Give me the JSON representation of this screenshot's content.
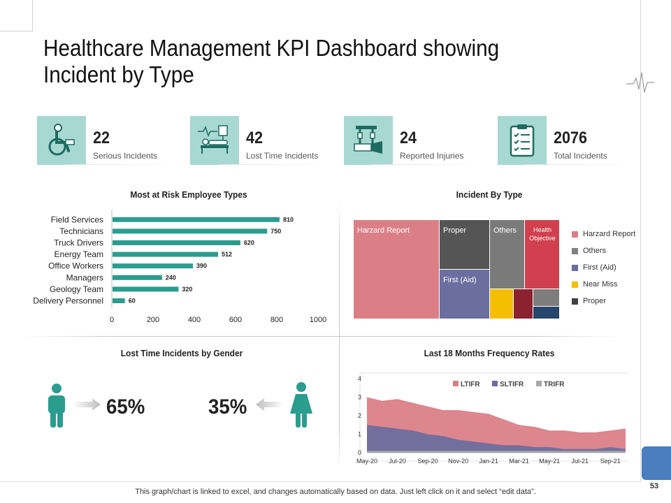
{
  "title": "Healthcare Management KPI Dashboard showing Incident by Type",
  "page_number": "53",
  "footer": "This graph/chart is linked to excel, and changes automatically based on data. Just left click on it and select “edit data”.",
  "colors": {
    "teal": "#2a9d8f",
    "icon_bg": "#a8d8d2",
    "accent_blue": "#4a7ebf"
  },
  "kpis": [
    {
      "value": "22",
      "label": "Serious Incidents",
      "icon": "wheelchair-icon"
    },
    {
      "value": "42",
      "label": "Lost Time Incidents",
      "icon": "hospital-bed-icon"
    },
    {
      "value": "24",
      "label": "Reported Injuries",
      "icon": "traction-icon"
    },
    {
      "value": "2076",
      "label": "Total Incidents",
      "icon": "checklist-icon"
    }
  ],
  "gender": {
    "title": "Lost Time Incidents by Gender",
    "male_pct": "65%",
    "female_pct": "35%"
  },
  "chart_data": [
    {
      "type": "bar",
      "orientation": "horizontal",
      "title": "Most at Risk Employee Types",
      "categories": [
        "Field Services",
        "Technicians",
        "Truck Drivers",
        "Energy Team",
        "Office Workers",
        "Managers",
        "Geology Team",
        "Delivery Personnel"
      ],
      "values": [
        810,
        750,
        620,
        512,
        390,
        240,
        320,
        60
      ],
      "xlim": [
        0,
        1000
      ],
      "xticks": [
        "0",
        "200",
        "400",
        "600",
        "800",
        "1000"
      ],
      "color": "#2a9d8f"
    },
    {
      "type": "treemap",
      "title": "Incident By Type",
      "rects": [
        {
          "label": "Harzard Report",
          "color": "#db7f87"
        },
        {
          "label": "Proper",
          "color": "#555555"
        },
        {
          "label": "First (Aid)",
          "color": "#6b6e9e"
        },
        {
          "label": "Others",
          "color": "#7a7a7a"
        },
        {
          "label": "Health Objective",
          "color": "#d0404e"
        },
        {
          "label": "",
          "color": "#f5be00"
        },
        {
          "label": "",
          "color": "#8a2230"
        },
        {
          "label": "",
          "color": "#7d7d7d"
        },
        {
          "label": "",
          "color": "#27466b"
        }
      ],
      "legend": [
        {
          "label": "Harzard Report",
          "color": "#db7f87"
        },
        {
          "label": "Others",
          "color": "#808080"
        },
        {
          "label": "First (Aid)",
          "color": "#6b6e9e"
        },
        {
          "label": "Near Miss",
          "color": "#f5be00"
        },
        {
          "label": "Proper",
          "color": "#404040"
        }
      ]
    },
    {
      "type": "area",
      "title": "Last 18 Months Frequency Rates",
      "x": [
        "May-20",
        "Jun-20",
        "Jul-20",
        "Aug-20",
        "Sep-20",
        "Oct-20",
        "Nov-20",
        "Dec-20",
        "Jan-21",
        "Feb-21",
        "Mar-21",
        "Apr-21",
        "May-21",
        "Jun-21",
        "Jul-21",
        "Aug-21",
        "Sep-21",
        "Oct-21"
      ],
      "xtick_labels": [
        "May-20",
        "Jul-20",
        "Sep-20",
        "Nov-20",
        "Jan-21",
        "Mar-21",
        "May-21",
        "Jul-21",
        "Sep-21"
      ],
      "ylim": [
        0,
        4
      ],
      "yticks": [
        "0",
        "1",
        "2",
        "3",
        "4"
      ],
      "series": [
        {
          "name": "LTIFR",
          "color": "#db7f87",
          "values": [
            3.0,
            2.8,
            2.9,
            2.7,
            2.5,
            2.3,
            2.3,
            2.2,
            2.1,
            1.8,
            1.5,
            1.4,
            1.2,
            1.2,
            1.1,
            1.1,
            1.2,
            1.3
          ]
        },
        {
          "name": "SLTIFR",
          "color": "#6b6e9e",
          "values": [
            1.5,
            1.4,
            1.3,
            1.2,
            1.0,
            0.9,
            0.7,
            0.6,
            0.5,
            0.4,
            0.4,
            0.3,
            0.3,
            0.2,
            0.2,
            0.2,
            0.3,
            0.2
          ]
        },
        {
          "name": "TRIFR",
          "color": "#a8a8a8",
          "values": [
            0.1,
            0.1,
            0.1,
            0.1,
            0.1,
            0.1,
            0.1,
            0.1,
            0.1,
            0.1,
            0.1,
            0.1,
            0.1,
            0.1,
            0.1,
            0.1,
            0.1,
            0.1
          ]
        }
      ]
    }
  ]
}
